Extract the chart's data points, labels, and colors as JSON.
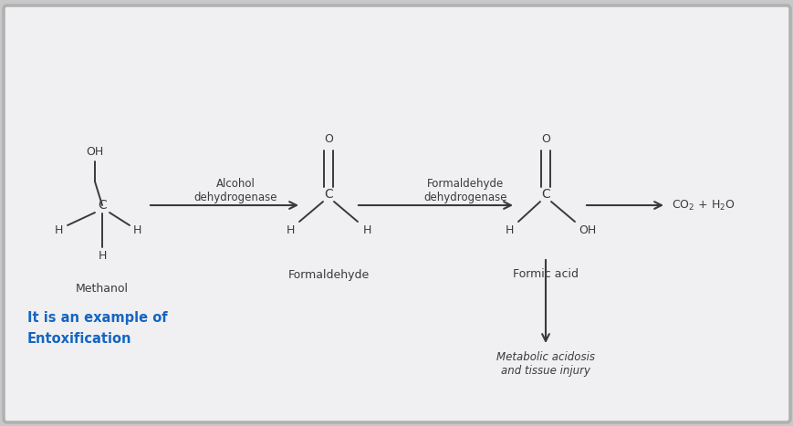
{
  "bg_color": "#c8c8c8",
  "panel_color": "#f0f0f2",
  "panel_edge_color": "#b0b0b0",
  "text_color": "#3a3a3a",
  "blue_text_color": "#1565c0",
  "bond_color": "#3a3a3a",
  "arrow_color": "#3a3a3a",
  "methanol_label": "Methanol",
  "formaldehyde_label": "Formaldehyde",
  "formic_acid_label": "Formic acid",
  "metabolic_label": "Metabolic acidosis\nand tissue injury",
  "entox_line1": "It is an example of",
  "entox_line2": "Entoxification",
  "enzyme1_label": "Alcohol\ndehydrogenase",
  "enzyme2_label": "Formaldehyde\ndehydrogenase",
  "figsize": [
    8.7,
    4.67
  ],
  "dpi": 100
}
